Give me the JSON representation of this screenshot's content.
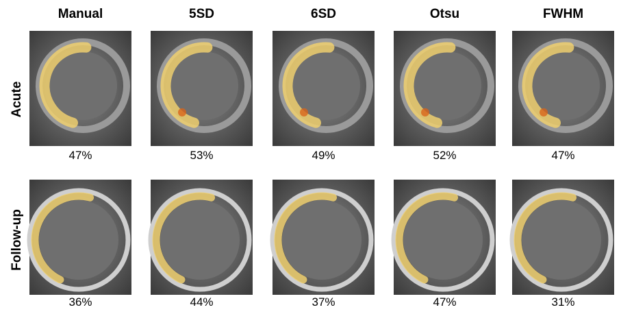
{
  "columns": [
    "Manual",
    "5SD",
    "6SD",
    "Otsu",
    "FWHM"
  ],
  "rows": [
    {
      "label": "Acute",
      "values": [
        "47%",
        "53%",
        "49%",
        "52%",
        "47%"
      ]
    },
    {
      "label": "Follow-up",
      "values": [
        "36%",
        "44%",
        "37%",
        "47%",
        "31%"
      ]
    }
  ]
}
